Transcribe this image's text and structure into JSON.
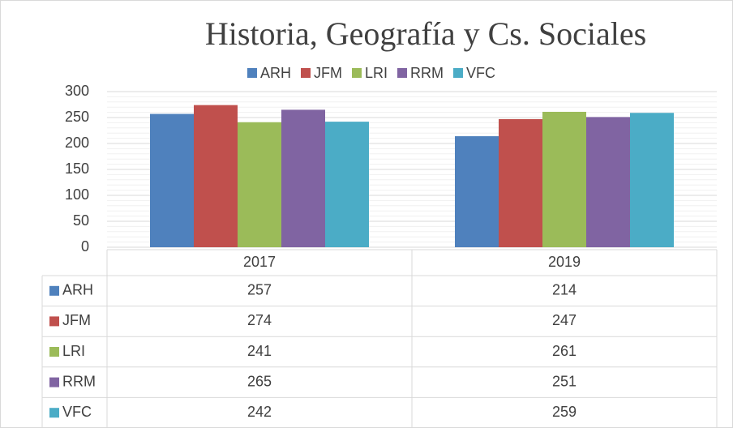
{
  "chart_data": {
    "type": "bar",
    "title": "Historia, Geografía y Cs. Sociales",
    "categories": [
      "2017",
      "2019"
    ],
    "series": [
      {
        "name": "ARH",
        "color": "#4f81bd",
        "values": [
          257,
          214
        ]
      },
      {
        "name": "JFM",
        "color": "#c0504d",
        "values": [
          274,
          247
        ]
      },
      {
        "name": "LRI",
        "color": "#9bbb59",
        "values": [
          241,
          261
        ]
      },
      {
        "name": "RRM",
        "color": "#8064a2",
        "values": [
          265,
          251
        ]
      },
      {
        "name": "VFC",
        "color": "#4bacc6",
        "values": [
          242,
          259
        ]
      }
    ],
    "ylim": [
      0,
      300
    ],
    "yticks": [
      0,
      50,
      100,
      150,
      200,
      250,
      300
    ],
    "grid": true,
    "minor_grid": true,
    "legend": "top",
    "data_table": true
  }
}
